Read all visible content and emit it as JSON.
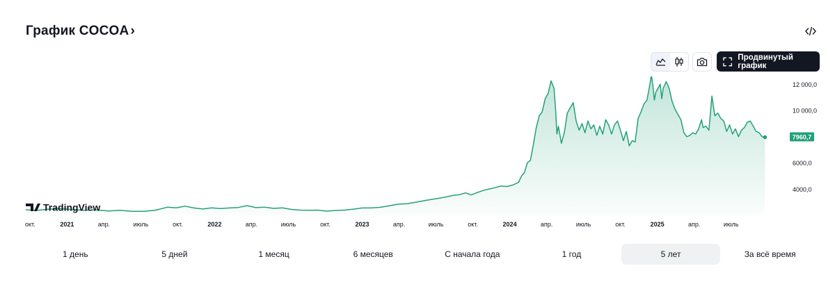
{
  "header": {
    "title": "График COCOA",
    "title_chevron": "›",
    "embed_icon": "code-embed-icon"
  },
  "toolbar": {
    "chart_types": [
      {
        "name": "area-chart-icon",
        "active": true
      },
      {
        "name": "candles-chart-icon",
        "active": false
      }
    ],
    "snapshot_icon": "camera-icon",
    "advanced_icon": "fullscreen-corners-icon",
    "advanced_label": "Продвинутый график"
  },
  "branding": {
    "logo_text": "TradingView"
  },
  "ranges": [
    {
      "label": "1 день",
      "active": false
    },
    {
      "label": "5 дней",
      "active": false
    },
    {
      "label": "1 месяц",
      "active": false
    },
    {
      "label": "6 месяцев",
      "active": false
    },
    {
      "label": "С начала года",
      "active": false
    },
    {
      "label": "1 год",
      "active": false
    },
    {
      "label": "5 лет",
      "active": true
    },
    {
      "label": "За всё время",
      "active": false
    }
  ],
  "colors": {
    "line": "#22a079",
    "area_top": "#22a079",
    "price_badge": "#22a079",
    "text": "#131722",
    "axis_text": "#131722"
  },
  "chart_data": {
    "type": "area",
    "symbol": "COCOA",
    "x_range": [
      2020.72,
      2025.86
    ],
    "ylim": [
      2000,
      12600
    ],
    "y_ticks": [
      4000,
      6000,
      10000,
      12000
    ],
    "y_tick_labels": [
      "4000,0",
      "6000,0",
      "10 000,0",
      "12 000,0"
    ],
    "last_value": 7960.7,
    "last_value_label": "7960,7",
    "x_ticks": [
      {
        "t": 2020.75,
        "label": "окт.",
        "bold": false
      },
      {
        "t": 2021.0,
        "label": "2021",
        "bold": true
      },
      {
        "t": 2021.25,
        "label": "апр.",
        "bold": false
      },
      {
        "t": 2021.5,
        "label": "июль",
        "bold": false
      },
      {
        "t": 2021.75,
        "label": "окт.",
        "bold": false
      },
      {
        "t": 2022.0,
        "label": "2022",
        "bold": true
      },
      {
        "t": 2022.25,
        "label": "апр.",
        "bold": false
      },
      {
        "t": 2022.5,
        "label": "июль",
        "bold": false
      },
      {
        "t": 2022.75,
        "label": "окт.",
        "bold": false
      },
      {
        "t": 2023.0,
        "label": "2023",
        "bold": true
      },
      {
        "t": 2023.25,
        "label": "апр.",
        "bold": false
      },
      {
        "t": 2023.5,
        "label": "июль",
        "bold": false
      },
      {
        "t": 2023.75,
        "label": "окт.",
        "bold": false
      },
      {
        "t": 2024.0,
        "label": "2024",
        "bold": true
      },
      {
        "t": 2024.25,
        "label": "апр.",
        "bold": false
      },
      {
        "t": 2024.5,
        "label": "июль",
        "bold": false
      },
      {
        "t": 2024.75,
        "label": "окт.",
        "bold": false
      },
      {
        "t": 2025.0,
        "label": "2025",
        "bold": true
      },
      {
        "t": 2025.25,
        "label": "апр.",
        "bold": false
      },
      {
        "t": 2025.5,
        "label": "июль",
        "bold": false
      }
    ],
    "series": [
      {
        "name": "COCOA",
        "points": [
          [
            2020.72,
            2420
          ],
          [
            2020.8,
            2380
          ],
          [
            2020.88,
            2470
          ],
          [
            2020.96,
            2510
          ],
          [
            2021.04,
            2430
          ],
          [
            2021.12,
            2380
          ],
          [
            2021.2,
            2410
          ],
          [
            2021.28,
            2330
          ],
          [
            2021.36,
            2380
          ],
          [
            2021.44,
            2310
          ],
          [
            2021.52,
            2300
          ],
          [
            2021.6,
            2390
          ],
          [
            2021.68,
            2620
          ],
          [
            2021.74,
            2570
          ],
          [
            2021.8,
            2700
          ],
          [
            2021.86,
            2560
          ],
          [
            2021.92,
            2480
          ],
          [
            2021.98,
            2570
          ],
          [
            2022.04,
            2520
          ],
          [
            2022.1,
            2560
          ],
          [
            2022.16,
            2600
          ],
          [
            2022.22,
            2740
          ],
          [
            2022.28,
            2590
          ],
          [
            2022.34,
            2620
          ],
          [
            2022.4,
            2530
          ],
          [
            2022.46,
            2570
          ],
          [
            2022.52,
            2450
          ],
          [
            2022.58,
            2400
          ],
          [
            2022.64,
            2380
          ],
          [
            2022.7,
            2400
          ],
          [
            2022.76,
            2320
          ],
          [
            2022.82,
            2370
          ],
          [
            2022.88,
            2400
          ],
          [
            2022.94,
            2470
          ],
          [
            2023.0,
            2560
          ],
          [
            2023.06,
            2560
          ],
          [
            2023.12,
            2610
          ],
          [
            2023.18,
            2720
          ],
          [
            2023.24,
            2850
          ],
          [
            2023.3,
            2880
          ],
          [
            2023.36,
            2990
          ],
          [
            2023.42,
            3120
          ],
          [
            2023.48,
            3230
          ],
          [
            2023.54,
            3340
          ],
          [
            2023.58,
            3430
          ],
          [
            2023.62,
            3530
          ],
          [
            2023.66,
            3580
          ],
          [
            2023.7,
            3710
          ],
          [
            2023.74,
            3560
          ],
          [
            2023.78,
            3740
          ],
          [
            2023.82,
            3900
          ],
          [
            2023.86,
            4010
          ],
          [
            2023.9,
            4110
          ],
          [
            2023.94,
            4230
          ],
          [
            2023.98,
            4200
          ],
          [
            2024.02,
            4310
          ],
          [
            2024.06,
            4520
          ],
          [
            2024.08,
            5000
          ],
          [
            2024.1,
            5280
          ],
          [
            2024.12,
            6020
          ],
          [
            2024.14,
            6200
          ],
          [
            2024.16,
            7400
          ],
          [
            2024.18,
            8700
          ],
          [
            2024.2,
            9600
          ],
          [
            2024.22,
            9900
          ],
          [
            2024.24,
            10900
          ],
          [
            2024.26,
            11300
          ],
          [
            2024.28,
            12260
          ],
          [
            2024.3,
            11700
          ],
          [
            2024.31,
            10200
          ],
          [
            2024.32,
            8200
          ],
          [
            2024.33,
            8800
          ],
          [
            2024.35,
            7500
          ],
          [
            2024.37,
            8300
          ],
          [
            2024.39,
            9800
          ],
          [
            2024.41,
            10200
          ],
          [
            2024.43,
            10600
          ],
          [
            2024.45,
            9200
          ],
          [
            2024.47,
            8500
          ],
          [
            2024.49,
            9000
          ],
          [
            2024.51,
            8300
          ],
          [
            2024.53,
            9200
          ],
          [
            2024.55,
            8600
          ],
          [
            2024.57,
            8900
          ],
          [
            2024.59,
            8100
          ],
          [
            2024.61,
            8800
          ],
          [
            2024.63,
            8200
          ],
          [
            2024.65,
            9300
          ],
          [
            2024.67,
            8900
          ],
          [
            2024.69,
            8200
          ],
          [
            2024.71,
            8900
          ],
          [
            2024.73,
            9200
          ],
          [
            2024.75,
            8500
          ],
          [
            2024.77,
            7700
          ],
          [
            2024.79,
            8400
          ],
          [
            2024.81,
            7300
          ],
          [
            2024.83,
            7700
          ],
          [
            2024.85,
            7600
          ],
          [
            2024.87,
            9400
          ],
          [
            2024.89,
            9900
          ],
          [
            2024.91,
            10500
          ],
          [
            2024.93,
            10800
          ],
          [
            2024.95,
            12000
          ],
          [
            2024.96,
            12700
          ],
          [
            2024.97,
            11900
          ],
          [
            2024.98,
            10800
          ],
          [
            2024.99,
            11400
          ],
          [
            2025.0,
            11600
          ],
          [
            2025.02,
            12000
          ],
          [
            2025.03,
            10900
          ],
          [
            2025.04,
            11700
          ],
          [
            2025.06,
            12200
          ],
          [
            2025.08,
            11700
          ],
          [
            2025.1,
            10700
          ],
          [
            2025.12,
            10100
          ],
          [
            2025.14,
            9700
          ],
          [
            2025.16,
            9300
          ],
          [
            2025.18,
            8300
          ],
          [
            2025.2,
            8000
          ],
          [
            2025.22,
            8100
          ],
          [
            2025.24,
            8300
          ],
          [
            2025.26,
            8200
          ],
          [
            2025.28,
            8600
          ],
          [
            2025.3,
            9300
          ],
          [
            2025.31,
            8700
          ],
          [
            2025.33,
            8800
          ],
          [
            2025.35,
            8500
          ],
          [
            2025.36,
            9800
          ],
          [
            2025.37,
            11100
          ],
          [
            2025.39,
            9600
          ],
          [
            2025.41,
            9800
          ],
          [
            2025.43,
            9400
          ],
          [
            2025.45,
            9200
          ],
          [
            2025.47,
            8400
          ],
          [
            2025.49,
            8900
          ],
          [
            2025.51,
            8200
          ],
          [
            2025.53,
            8600
          ],
          [
            2025.55,
            8000
          ],
          [
            2025.57,
            8500
          ],
          [
            2025.59,
            8700
          ],
          [
            2025.61,
            9100
          ],
          [
            2025.63,
            9200
          ],
          [
            2025.65,
            8800
          ],
          [
            2025.67,
            8400
          ],
          [
            2025.69,
            8300
          ],
          [
            2025.71,
            8000
          ],
          [
            2025.73,
            7960.7
          ]
        ]
      }
    ]
  }
}
